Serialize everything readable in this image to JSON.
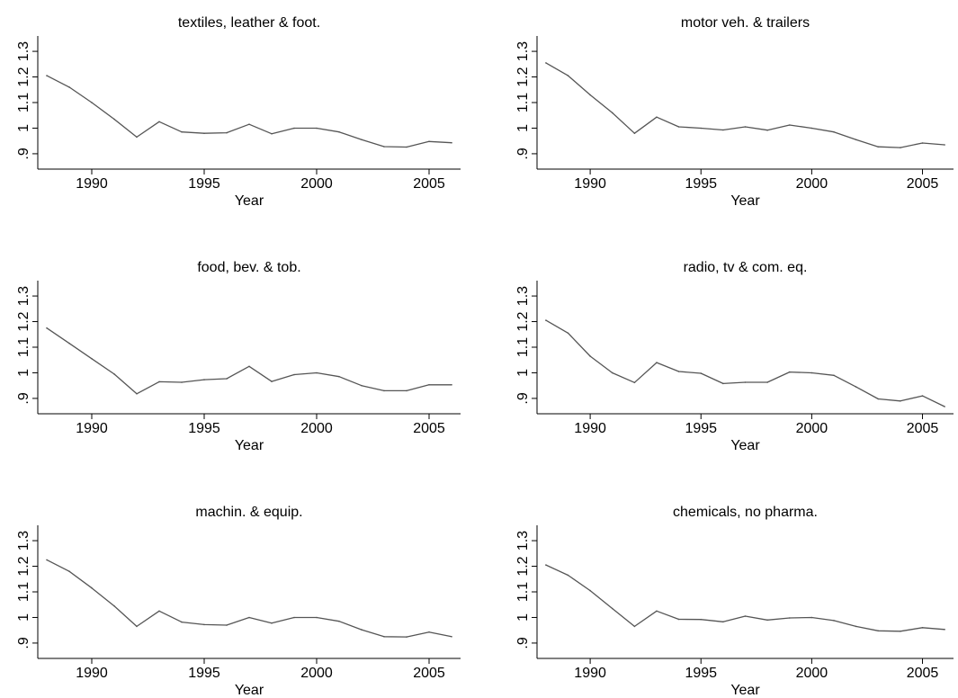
{
  "style": {
    "line_color": "#555555",
    "axis_color": "#000000",
    "background": "#ffffff"
  },
  "chart_data": [
    {
      "type": "line",
      "title": "textiles, leather & foot.",
      "xlabel": "Year",
      "ylabel": "",
      "xticks": [
        "1990",
        "1995",
        "2000",
        "2005"
      ],
      "yticks": [
        ".9",
        "1",
        "1.1",
        "1.2",
        "1.3"
      ],
      "xlim": [
        1987.6,
        2006.4
      ],
      "ylim": [
        0.84,
        1.36
      ],
      "grid": false,
      "x": [
        1988,
        1989,
        1990,
        1991,
        1992,
        1993,
        1994,
        1995,
        1996,
        1997,
        1998,
        1999,
        2000,
        2001,
        2002,
        2003,
        2004,
        2005,
        2006
      ],
      "values": [
        1.205,
        1.16,
        1.1,
        1.035,
        0.965,
        1.025,
        0.985,
        0.98,
        0.982,
        1.015,
        0.978,
        1.0,
        1.0,
        0.985,
        0.955,
        0.928,
        0.926,
        0.948,
        0.943
      ]
    },
    {
      "type": "line",
      "title": "motor veh. & trailers",
      "xlabel": "Year",
      "ylabel": "",
      "xticks": [
        "1990",
        "1995",
        "2000",
        "2005"
      ],
      "yticks": [
        ".9",
        "1",
        "1.1",
        "1.2",
        "1.3"
      ],
      "xlim": [
        1987.6,
        2006.4
      ],
      "ylim": [
        0.84,
        1.36
      ],
      "grid": false,
      "x": [
        1988,
        1989,
        1990,
        1991,
        1992,
        1993,
        1994,
        1995,
        1996,
        1997,
        1998,
        1999,
        2000,
        2001,
        2002,
        2003,
        2004,
        2005,
        2006
      ],
      "values": [
        1.255,
        1.205,
        1.13,
        1.06,
        0.98,
        1.043,
        1.005,
        1.0,
        0.993,
        1.005,
        0.992,
        1.012,
        1.0,
        0.985,
        0.955,
        0.927,
        0.924,
        0.942,
        0.935
      ]
    },
    {
      "type": "line",
      "title": "food, bev. & tob.",
      "xlabel": "Year",
      "ylabel": "",
      "xticks": [
        "1990",
        "1995",
        "2000",
        "2005"
      ],
      "yticks": [
        ".9",
        "1",
        "1.1",
        "1.2",
        "1.3"
      ],
      "xlim": [
        1987.6,
        2006.4
      ],
      "ylim": [
        0.84,
        1.36
      ],
      "grid": false,
      "x": [
        1988,
        1989,
        1990,
        1991,
        1992,
        1993,
        1994,
        1995,
        1996,
        1997,
        1998,
        1999,
        2000,
        2001,
        2002,
        2003,
        2004,
        2005,
        2006
      ],
      "values": [
        1.175,
        1.115,
        1.055,
        0.995,
        0.918,
        0.965,
        0.963,
        0.973,
        0.977,
        1.025,
        0.966,
        0.993,
        1.0,
        0.985,
        0.95,
        0.93,
        0.93,
        0.953,
        0.953
      ]
    },
    {
      "type": "line",
      "title": "radio, tv & com. eq.",
      "xlabel": "Year",
      "ylabel": "",
      "xticks": [
        "1990",
        "1995",
        "2000",
        "2005"
      ],
      "yticks": [
        ".9",
        "1",
        "1.1",
        "1.2",
        "1.3"
      ],
      "xlim": [
        1987.6,
        2006.4
      ],
      "ylim": [
        0.84,
        1.36
      ],
      "grid": false,
      "x": [
        1988,
        1989,
        1990,
        1991,
        1992,
        1993,
        1994,
        1995,
        1996,
        1997,
        1998,
        1999,
        2000,
        2001,
        2002,
        2003,
        2004,
        2005,
        2006
      ],
      "values": [
        1.205,
        1.155,
        1.065,
        1.0,
        0.962,
        1.04,
        1.005,
        0.998,
        0.958,
        0.963,
        0.963,
        1.003,
        1.0,
        0.99,
        0.945,
        0.898,
        0.89,
        0.91,
        0.868
      ]
    },
    {
      "type": "line",
      "title": "machin. & equip.",
      "xlabel": "Year",
      "ylabel": "",
      "xticks": [
        "1990",
        "1995",
        "2000",
        "2005"
      ],
      "yticks": [
        ".9",
        "1",
        "1.1",
        "1.2",
        "1.3"
      ],
      "xlim": [
        1987.6,
        2006.4
      ],
      "ylim": [
        0.84,
        1.36
      ],
      "grid": false,
      "x": [
        1988,
        1989,
        1990,
        1991,
        1992,
        1993,
        1994,
        1995,
        1996,
        1997,
        1998,
        1999,
        2000,
        2001,
        2002,
        2003,
        2004,
        2005,
        2006
      ],
      "values": [
        1.225,
        1.18,
        1.115,
        1.045,
        0.965,
        1.025,
        0.982,
        0.972,
        0.97,
        1.0,
        0.978,
        1.0,
        1.0,
        0.985,
        0.952,
        0.925,
        0.924,
        0.943,
        0.925
      ]
    },
    {
      "type": "line",
      "title": "chemicals, no pharma.",
      "xlabel": "Year",
      "ylabel": "",
      "xticks": [
        "1990",
        "1995",
        "2000",
        "2005"
      ],
      "yticks": [
        ".9",
        "1",
        "1.1",
        "1.2",
        "1.3"
      ],
      "xlim": [
        1987.6,
        2006.4
      ],
      "ylim": [
        0.84,
        1.36
      ],
      "grid": false,
      "x": [
        1988,
        1989,
        1990,
        1991,
        1992,
        1993,
        1994,
        1995,
        1996,
        1997,
        1998,
        1999,
        2000,
        2001,
        2002,
        2003,
        2004,
        2005,
        2006
      ],
      "values": [
        1.205,
        1.165,
        1.105,
        1.035,
        0.965,
        1.025,
        0.993,
        0.992,
        0.983,
        1.005,
        0.99,
        0.998,
        1.0,
        0.988,
        0.965,
        0.948,
        0.946,
        0.96,
        0.953
      ]
    }
  ]
}
